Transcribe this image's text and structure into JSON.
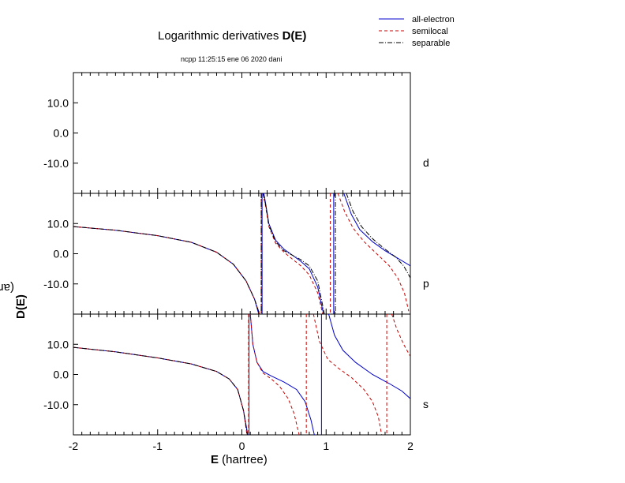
{
  "header": {
    "title_prefix": "Logarithmic derivatives ",
    "title_emph": "D(E)",
    "subtitle": "ncpp 11:25:15 ene 06 2020 dani"
  },
  "axes_text": {
    "xlabel_emph": "E",
    "xlabel_rest": " (hartree)",
    "ylabel_emph": "D(E)",
    "ylabel_rest": "  (arbitrary scale)"
  },
  "colors": {
    "all_electron": "#0000cc",
    "semilocal": "#cc0000",
    "separable": "#000000"
  },
  "chart_data": {
    "type": "line",
    "title": "Logarithmic derivatives D(E)",
    "xlabel": "E (hartree)",
    "ylabel": "D(E)  (arbitrary scale)",
    "xlim": [
      -2,
      2
    ],
    "ylim": [
      -20,
      20
    ],
    "x_ticks": [
      "-2",
      "-1",
      "0",
      "1",
      "2"
    ],
    "y_ticks": [
      "10.0",
      "0.0",
      "-10.0"
    ],
    "legend": {
      "placement": "top-right",
      "entries": [
        {
          "name": "all-electron",
          "style": "solid"
        },
        {
          "name": "semilocal",
          "style": "dashed"
        },
        {
          "name": "separable",
          "style": "dash-dot"
        }
      ]
    },
    "panels": [
      {
        "label": "d",
        "series": []
      },
      {
        "label": "p",
        "series": [
          {
            "name": "all-electron",
            "segments": [
              {
                "x": [
                  -2.0,
                  -1.5,
                  -1.0,
                  -0.6,
                  -0.3,
                  -0.1,
                  0.05,
                  0.15,
                  0.2,
                  0.22
                ],
                "y": [
                  9.0,
                  7.8,
                  6.0,
                  3.8,
                  0.5,
                  -3.5,
                  -9.0,
                  -15.0,
                  -20.0,
                  -20.0
                ]
              },
              {
                "x": [
                  0.26,
                  0.28,
                  0.32,
                  0.4,
                  0.5,
                  0.6,
                  0.7,
                  0.8,
                  0.9,
                  0.97
                ],
                "y": [
                  20.0,
                  17.0,
                  10.0,
                  4.5,
                  1.5,
                  -0.5,
                  -2.5,
                  -5.0,
                  -11.0,
                  -20.0
                ]
              },
              {
                "x": [
                  1.21,
                  1.3,
                  1.4,
                  1.55,
                  1.7,
                  1.85,
                  2.0
                ],
                "y": [
                  20.0,
                  13.0,
                  8.0,
                  4.0,
                  1.0,
                  -1.5,
                  -4.0
                ]
              }
            ]
          },
          {
            "name": "semilocal",
            "segments": [
              {
                "x": [
                  -2.0,
                  -1.5,
                  -1.0,
                  -0.6,
                  -0.3,
                  -0.1,
                  0.05,
                  0.15,
                  0.21
                ],
                "y": [
                  9.0,
                  7.8,
                  6.0,
                  3.8,
                  0.5,
                  -3.5,
                  -9.0,
                  -15.0,
                  -20.0
                ]
              },
              {
                "x": [
                  0.25,
                  0.28,
                  0.32,
                  0.4,
                  0.5,
                  0.6,
                  0.7,
                  0.8,
                  0.9,
                  0.96
                ],
                "y": [
                  20.0,
                  16.0,
                  9.0,
                  3.5,
                  0.5,
                  -1.8,
                  -4.0,
                  -7.0,
                  -13.0,
                  -20.0
                ]
              },
              {
                "x": [
                  1.14,
                  1.22,
                  1.32,
                  1.45,
                  1.6,
                  1.75,
                  1.85,
                  1.93,
                  1.98
                ],
                "y": [
                  20.0,
                  14.0,
                  8.5,
                  4.0,
                  0.0,
                  -4.0,
                  -8.0,
                  -13.0,
                  -19.0
                ]
              }
            ]
          },
          {
            "name": "separable",
            "segments": [
              {
                "x": [
                  -2.0,
                  -1.5,
                  -1.0,
                  -0.6,
                  -0.3,
                  -0.1,
                  0.05,
                  0.15,
                  0.21
                ],
                "y": [
                  9.0,
                  7.8,
                  6.0,
                  3.8,
                  0.5,
                  -3.5,
                  -9.0,
                  -15.0,
                  -20.0
                ]
              },
              {
                "x": [
                  0.25,
                  0.28,
                  0.32,
                  0.4,
                  0.5,
                  0.6,
                  0.7,
                  0.8,
                  0.9,
                  0.98
                ],
                "y": [
                  20.0,
                  16.5,
                  9.5,
                  4.0,
                  1.0,
                  -0.5,
                  -2.0,
                  -4.0,
                  -9.0,
                  -20.0
                ]
              },
              {
                "x": [
                  1.24,
                  1.32,
                  1.42,
                  1.55,
                  1.7,
                  1.82,
                  1.92,
                  2.0
                ],
                "y": [
                  20.0,
                  14.0,
                  9.0,
                  5.0,
                  1.5,
                  -1.0,
                  -4.0,
                  -8.0
                ]
              }
            ]
          }
        ]
      },
      {
        "label": "s",
        "series": [
          {
            "name": "all-electron",
            "segments": [
              {
                "x": [
                  -2.0,
                  -1.5,
                  -1.0,
                  -0.6,
                  -0.3,
                  -0.15,
                  -0.05,
                  0.02,
                  0.07
                ],
                "y": [
                  9.0,
                  7.5,
                  5.5,
                  3.5,
                  1.0,
                  -1.5,
                  -5.0,
                  -12.0,
                  -20.0
                ]
              },
              {
                "x": [
                  0.1,
                  0.13,
                  0.18,
                  0.25,
                  0.35,
                  0.5,
                  0.65,
                  0.75,
                  0.82,
                  0.86
                ],
                "y": [
                  20.0,
                  10.0,
                  4.0,
                  1.0,
                  -0.5,
                  -2.5,
                  -5.0,
                  -9.0,
                  -15.0,
                  -20.0
                ]
              },
              {
                "x": [
                  1.03,
                  1.1,
                  1.2,
                  1.35,
                  1.55,
                  1.75,
                  1.9,
                  2.0
                ],
                "y": [
                  20.0,
                  13.0,
                  8.0,
                  4.0,
                  0.0,
                  -3.0,
                  -5.5,
                  -8.0
                ]
              }
            ]
          },
          {
            "name": "semilocal",
            "segments": [
              {
                "x": [
                  -2.0,
                  -1.5,
                  -1.0,
                  -0.6,
                  -0.3,
                  -0.15,
                  -0.05,
                  0.02,
                  0.06
                ],
                "y": [
                  9.0,
                  7.5,
                  5.5,
                  3.5,
                  1.0,
                  -1.5,
                  -5.0,
                  -12.0,
                  -20.0
                ]
              },
              {
                "x": [
                  0.1,
                  0.13,
                  0.18,
                  0.25,
                  0.35,
                  0.45,
                  0.55,
                  0.62,
                  0.68
                ],
                "y": [
                  20.0,
                  10.0,
                  4.0,
                  0.5,
                  -1.5,
                  -4.0,
                  -8.0,
                  -13.0,
                  -20.0
                ]
              },
              {
                "x": [
                  0.85,
                  0.92,
                  1.02,
                  1.15,
                  1.3,
                  1.45,
                  1.55,
                  1.62,
                  1.66
                ],
                "y": [
                  20.0,
                  11.0,
                  5.0,
                  2.0,
                  -1.0,
                  -5.0,
                  -9.0,
                  -14.0,
                  -20.0
                ]
              },
              {
                "x": [
                  1.78,
                  1.84,
                  1.92,
                  2.0
                ],
                "y": [
                  20.0,
                  15.0,
                  10.0,
                  6.0
                ]
              }
            ]
          },
          {
            "name": "separable",
            "segments": [
              {
                "x": [
                  -2.0,
                  -1.5,
                  -1.0,
                  -0.6,
                  -0.3,
                  -0.15,
                  -0.05,
                  0.02,
                  0.065
                ],
                "y": [
                  9.0,
                  7.5,
                  5.5,
                  3.5,
                  1.0,
                  -1.5,
                  -5.0,
                  -12.0,
                  -20.0
                ]
              }
            ]
          }
        ]
      }
    ]
  }
}
